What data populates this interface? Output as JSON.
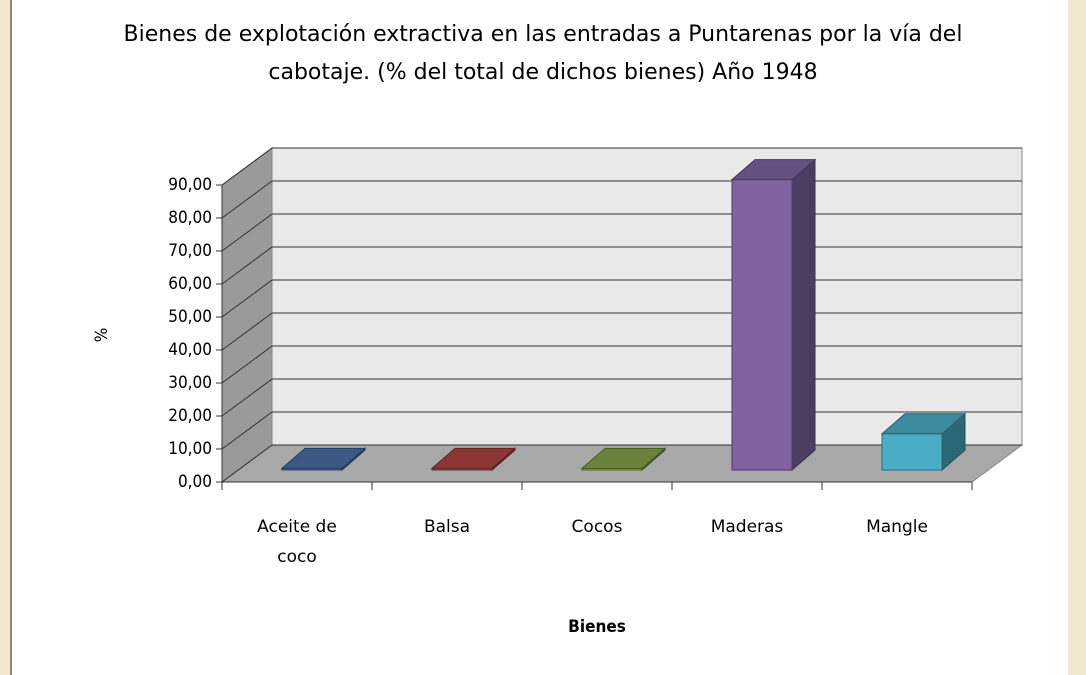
{
  "chart_data": {
    "type": "bar3d",
    "title": "Bienes de explotación extractiva en las entradas a Puntarenas por la vía del cabotaje. (% del total de dichos bienes) Año 1948",
    "x_label": "Bienes",
    "y_label": "%",
    "categories": [
      "Aceite de coco",
      "Balsa",
      "Cocos",
      "Maderas",
      "Mangle"
    ],
    "values": [
      0.5,
      0.5,
      0.5,
      88,
      11
    ],
    "colors": [
      "#4a6fa5",
      "#b04443",
      "#86a34a",
      "#8064a2",
      "#4bacc6"
    ],
    "ylim": [
      0,
      90
    ],
    "yticks": [
      {
        "value": 0,
        "label": "0,00"
      },
      {
        "value": 10,
        "label": "10,00"
      },
      {
        "value": 20,
        "label": "20,00"
      },
      {
        "value": 30,
        "label": "30,00"
      },
      {
        "value": 40,
        "label": "40,00"
      },
      {
        "value": 50,
        "label": "50,00"
      },
      {
        "value": 60,
        "label": "60,00"
      },
      {
        "value": 70,
        "label": "70,00"
      },
      {
        "value": 80,
        "label": "80,00"
      },
      {
        "value": 90,
        "label": "90,00"
      }
    ],
    "grid": true
  }
}
